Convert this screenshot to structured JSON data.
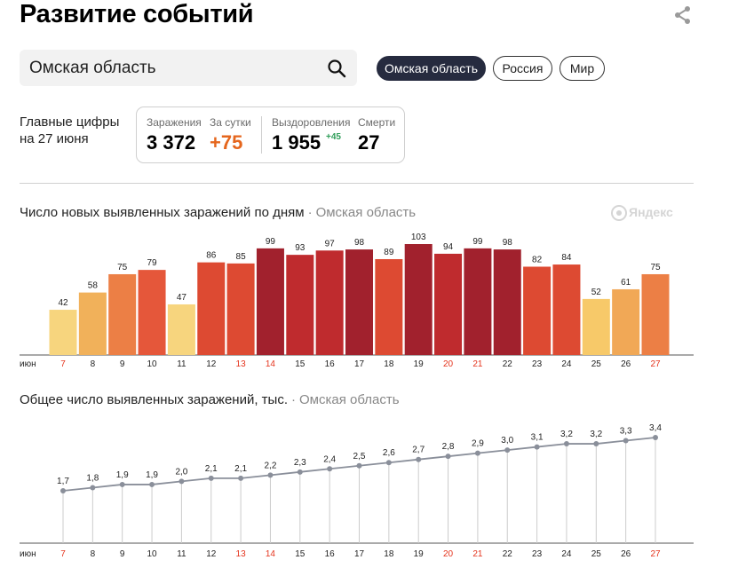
{
  "header": {
    "title": "Развитие событий"
  },
  "search": {
    "value": "Омская область"
  },
  "chips": [
    {
      "label": "Омская область",
      "active": true
    },
    {
      "label": "Россия",
      "active": false
    },
    {
      "label": "Мир",
      "active": false
    }
  ],
  "summary": {
    "label_line1": "Главные цифры",
    "label_line2": "на 27 июня",
    "infections_caption": "Заражения",
    "infections_value": "3 372",
    "daily_caption": "За сутки",
    "daily_value": "+75",
    "recovered_caption": "Выздоровления",
    "recovered_value": "1 955",
    "recovered_delta": "+45",
    "deaths_caption": "Смерти",
    "deaths_value": "27"
  },
  "watermark": {
    "text": "Яндекс"
  },
  "colors": {
    "weekday_tick": "#222222",
    "weekend_tick": "#e5341d",
    "daily_increase": "#e5661d",
    "recovered_delta": "#2f9e59",
    "line": "#8a8f9a",
    "grid": "#cccccc"
  },
  "chart_data": [
    {
      "type": "bar",
      "title": "Число новых выявленных заражений по дням",
      "region": "Омская область",
      "month_label": "июн",
      "categories": [
        "7",
        "8",
        "9",
        "10",
        "11",
        "12",
        "13",
        "14",
        "15",
        "16",
        "17",
        "18",
        "19",
        "20",
        "21",
        "22",
        "23",
        "24",
        "25",
        "26",
        "27"
      ],
      "weekend": [
        true,
        false,
        false,
        false,
        false,
        false,
        true,
        true,
        false,
        false,
        false,
        false,
        false,
        true,
        true,
        false,
        false,
        false,
        false,
        false,
        true
      ],
      "values": [
        42,
        58,
        75,
        79,
        47,
        86,
        85,
        99,
        93,
        97,
        98,
        89,
        103,
        94,
        99,
        98,
        82,
        84,
        52,
        61,
        75
      ],
      "colors": [
        "#f7d57e",
        "#f1b15a",
        "#ec7f45",
        "#e5573a",
        "#f7d57e",
        "#dd4a32",
        "#dd4a32",
        "#a1212d",
        "#bf2b2e",
        "#bf2b2e",
        "#a1212d",
        "#dd4a32",
        "#a1212d",
        "#bf2b2e",
        "#a1212d",
        "#a1212d",
        "#dd4a32",
        "#dd4a32",
        "#f7c969",
        "#f1a856",
        "#ec7f45"
      ]
    },
    {
      "type": "line",
      "title": "Общее число выявленных заражений, тыс.",
      "region": "Омская область",
      "month_label": "июн",
      "categories": [
        "7",
        "8",
        "9",
        "10",
        "11",
        "12",
        "13",
        "14",
        "15",
        "16",
        "17",
        "18",
        "19",
        "20",
        "21",
        "22",
        "23",
        "24",
        "25",
        "26",
        "27"
      ],
      "weekend": [
        true,
        false,
        false,
        false,
        false,
        false,
        true,
        true,
        false,
        false,
        false,
        false,
        false,
        true,
        true,
        false,
        false,
        false,
        false,
        false,
        true
      ],
      "values": [
        1.7,
        1.8,
        1.9,
        1.9,
        2.0,
        2.1,
        2.1,
        2.2,
        2.3,
        2.4,
        2.5,
        2.6,
        2.7,
        2.8,
        2.9,
        3.0,
        3.1,
        3.2,
        3.2,
        3.3,
        3.4
      ],
      "value_labels": [
        "1,7",
        "1,8",
        "1,9",
        "1,9",
        "2,0",
        "2,1",
        "2,1",
        "2,2",
        "2,3",
        "2,4",
        "2,5",
        "2,6",
        "2,7",
        "2,8",
        "2,9",
        "3,0",
        "3,1",
        "3,2",
        "3,2",
        "3,3",
        "3,4"
      ]
    }
  ]
}
